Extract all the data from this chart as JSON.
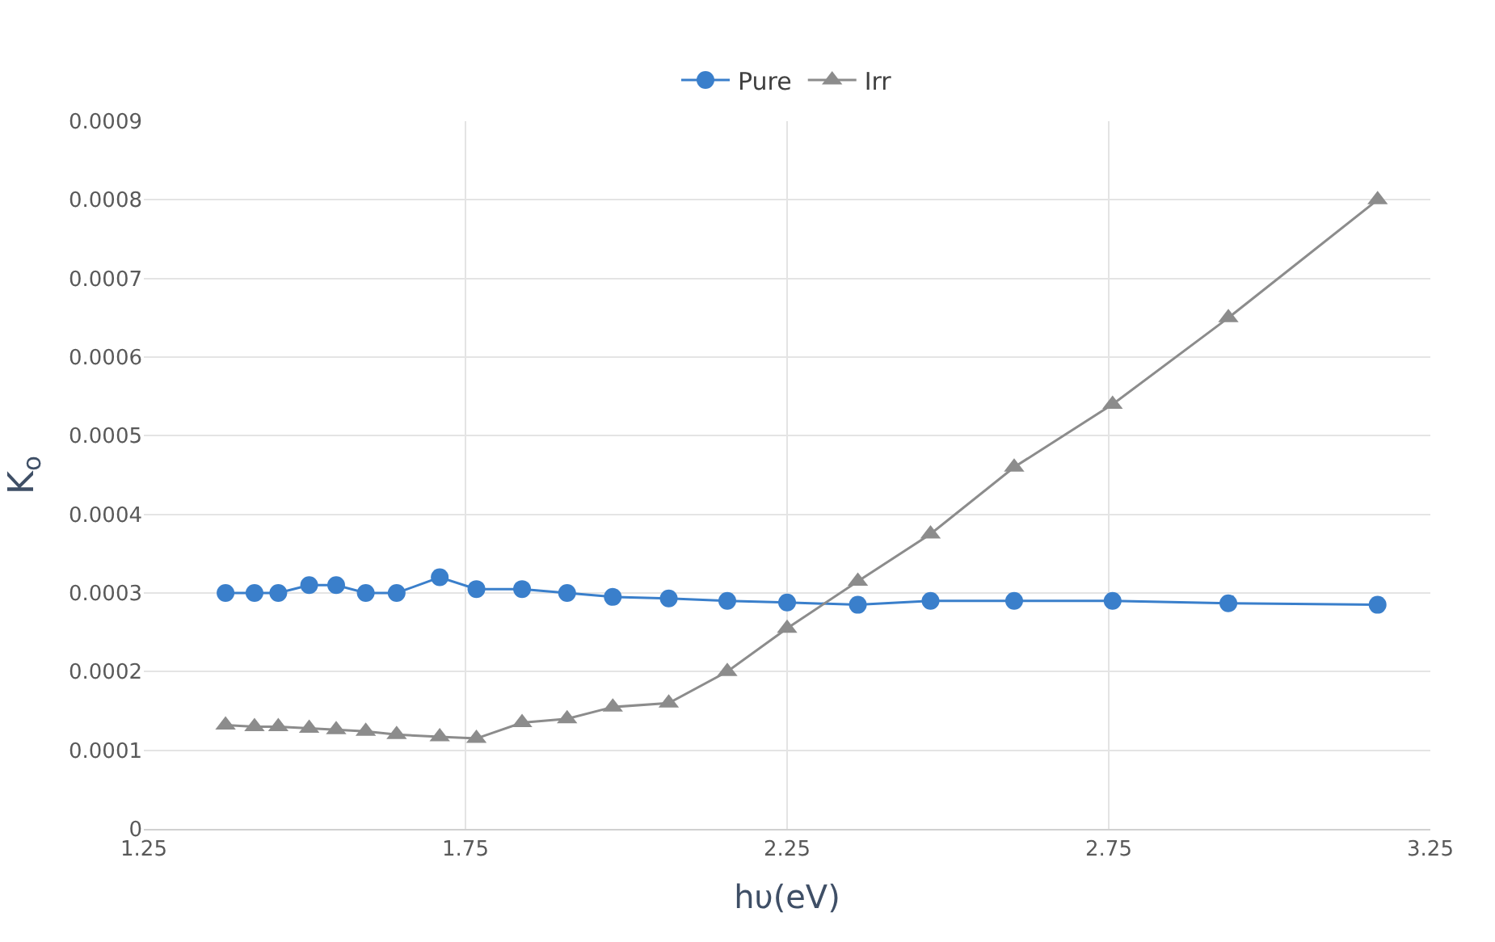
{
  "chart_data": {
    "type": "line",
    "xlabel": "hυ(eV)",
    "ylabel": "K$_{o}$",
    "x": [
      1.377,
      1.422,
      1.459,
      1.507,
      1.549,
      1.595,
      1.643,
      1.71,
      1.767,
      1.838,
      1.908,
      1.979,
      2.066,
      2.157,
      2.25,
      2.36,
      2.473,
      2.603,
      2.756,
      2.936,
      3.168
    ],
    "series": [
      {
        "name": "Pure",
        "color": "#3a7fcb",
        "marker": "circle",
        "values": [
          0.0003,
          0.0003,
          0.0003,
          0.00031,
          0.00031,
          0.0003,
          0.0003,
          0.00032,
          0.000305,
          0.000305,
          0.0003,
          0.000295,
          0.000293,
          0.00029,
          0.000288,
          0.000285,
          0.00029,
          0.00029,
          0.00029,
          0.000287,
          0.000285
        ]
      },
      {
        "name": "Irr",
        "color": "#8c8c8c",
        "marker": "triangle",
        "values": [
          0.000132,
          0.00013,
          0.00013,
          0.000128,
          0.000126,
          0.000124,
          0.00012,
          0.000117,
          0.000115,
          0.000135,
          0.00014,
          0.000155,
          0.00016,
          0.0002,
          0.000255,
          0.000315,
          0.000375,
          0.00046,
          0.00054,
          0.00065,
          0.0008
        ]
      }
    ],
    "xlim": [
      1.25,
      3.25
    ],
    "xticks": [
      1.25,
      1.75,
      2.25,
      2.75,
      3.25
    ],
    "ylim": [
      0,
      0.0009
    ],
    "yticks": [
      0,
      0.0001,
      0.0002,
      0.0003,
      0.0004,
      0.0005,
      0.0006,
      0.0007,
      0.0008,
      0.0009
    ],
    "grid": true,
    "legend": "top",
    "line_style": "solid"
  }
}
